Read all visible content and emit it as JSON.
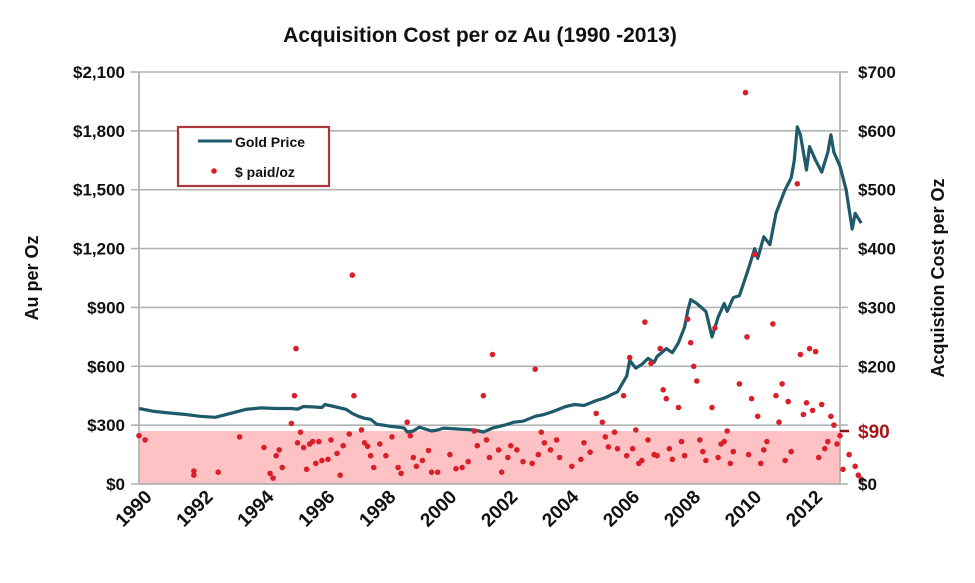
{
  "chart_data": {
    "type": "line",
    "title": "Acquisition Cost per oz Au (1990 -2013)",
    "xlabel": "",
    "ylabel_left": "Au per Oz",
    "ylabel_right": "Acquistion Cost per Oz",
    "xlim": [
      1990,
      2013
    ],
    "ylim_left": [
      0,
      2100
    ],
    "ylim_right": [
      0,
      700
    ],
    "grid": true,
    "x_ticks": [
      "1990",
      "1992",
      "1994",
      "1996",
      "1998",
      "2000",
      "2002",
      "2004",
      "2006",
      "2008",
      "2010",
      "2012"
    ],
    "y_left_ticks": [
      "$0",
      "$300",
      "$600",
      "$900",
      "$1,200",
      "$1,500",
      "$1,800",
      "$2,100"
    ],
    "y_right_ticks": [
      "$0",
      "$100",
      "$200",
      "$300",
      "$400",
      "$500",
      "$600",
      "$700"
    ],
    "threshold": {
      "value": 90,
      "label": "$90",
      "axis": "right",
      "color": "#b01c20",
      "band_color": "#ffc2c4"
    },
    "legend": {
      "placement": "top-left",
      "entries": [
        "Gold Price",
        "$ paid/oz"
      ]
    },
    "series": [
      {
        "name": "Gold Price",
        "axis": "left",
        "kind": "line",
        "color": "#1e5a6a",
        "points": [
          [
            1990.0,
            385
          ],
          [
            1990.5,
            370
          ],
          [
            1991.0,
            362
          ],
          [
            1991.5,
            355
          ],
          [
            1992.0,
            345
          ],
          [
            1992.5,
            340
          ],
          [
            1993.0,
            360
          ],
          [
            1993.5,
            380
          ],
          [
            1994.0,
            388
          ],
          [
            1994.5,
            385
          ],
          [
            1995.0,
            385
          ],
          [
            1995.2,
            382
          ],
          [
            1995.4,
            395
          ],
          [
            1995.7,
            393
          ],
          [
            1996.0,
            390
          ],
          [
            1996.1,
            405
          ],
          [
            1996.4,
            395
          ],
          [
            1996.8,
            380
          ],
          [
            1997.0,
            360
          ],
          [
            1997.2,
            345
          ],
          [
            1997.4,
            335
          ],
          [
            1997.6,
            330
          ],
          [
            1997.8,
            305
          ],
          [
            1998.0,
            300
          ],
          [
            1998.2,
            295
          ],
          [
            1998.5,
            290
          ],
          [
            1998.7,
            285
          ],
          [
            1998.8,
            265
          ],
          [
            1999.0,
            270
          ],
          [
            1999.2,
            290
          ],
          [
            1999.4,
            280
          ],
          [
            1999.6,
            270
          ],
          [
            1999.8,
            275
          ],
          [
            2000.0,
            285
          ],
          [
            2000.5,
            280
          ],
          [
            2001.0,
            275
          ],
          [
            2001.3,
            265
          ],
          [
            2001.6,
            285
          ],
          [
            2002.0,
            300
          ],
          [
            2002.3,
            315
          ],
          [
            2002.6,
            320
          ],
          [
            2003.0,
            345
          ],
          [
            2003.3,
            355
          ],
          [
            2003.6,
            370
          ],
          [
            2004.0,
            395
          ],
          [
            2004.3,
            405
          ],
          [
            2004.6,
            400
          ],
          [
            2005.0,
            425
          ],
          [
            2005.3,
            440
          ],
          [
            2005.5,
            455
          ],
          [
            2005.7,
            470
          ],
          [
            2006.0,
            550
          ],
          [
            2006.1,
            630
          ],
          [
            2006.3,
            590
          ],
          [
            2006.5,
            610
          ],
          [
            2006.7,
            640
          ],
          [
            2006.9,
            620
          ],
          [
            2007.0,
            650
          ],
          [
            2007.3,
            690
          ],
          [
            2007.5,
            670
          ],
          [
            2007.7,
            720
          ],
          [
            2007.9,
            800
          ],
          [
            2008.0,
            880
          ],
          [
            2008.1,
            940
          ],
          [
            2008.3,
            920
          ],
          [
            2008.6,
            880
          ],
          [
            2008.8,
            750
          ],
          [
            2009.0,
            850
          ],
          [
            2009.2,
            920
          ],
          [
            2009.3,
            880
          ],
          [
            2009.5,
            950
          ],
          [
            2009.7,
            960
          ],
          [
            2010.0,
            1100
          ],
          [
            2010.2,
            1200
          ],
          [
            2010.3,
            1150
          ],
          [
            2010.5,
            1260
          ],
          [
            2010.7,
            1220
          ],
          [
            2010.9,
            1380
          ],
          [
            2011.0,
            1420
          ],
          [
            2011.2,
            1500
          ],
          [
            2011.4,
            1560
          ],
          [
            2011.5,
            1650
          ],
          [
            2011.6,
            1820
          ],
          [
            2011.7,
            1780
          ],
          [
            2011.9,
            1600
          ],
          [
            2012.0,
            1720
          ],
          [
            2012.2,
            1650
          ],
          [
            2012.4,
            1590
          ],
          [
            2012.6,
            1690
          ],
          [
            2012.7,
            1780
          ],
          [
            2012.8,
            1690
          ],
          [
            2013.0,
            1620
          ],
          [
            2013.2,
            1500
          ],
          [
            2013.4,
            1300
          ],
          [
            2013.5,
            1380
          ],
          [
            2013.7,
            1330
          ]
        ]
      },
      {
        "name": "$ paid/oz",
        "axis": "right",
        "kind": "scatter",
        "color": "#d9202a",
        "points": [
          [
            1990.0,
            82
          ],
          [
            1990.2,
            75
          ],
          [
            1991.8,
            22
          ],
          [
            1991.8,
            15
          ],
          [
            1992.6,
            20
          ],
          [
            1993.3,
            80
          ],
          [
            1994.1,
            62
          ],
          [
            1994.3,
            18
          ],
          [
            1994.4,
            10
          ],
          [
            1994.5,
            48
          ],
          [
            1994.6,
            58
          ],
          [
            1994.7,
            28
          ],
          [
            1995.0,
            103
          ],
          [
            1995.1,
            150
          ],
          [
            1995.15,
            230
          ],
          [
            1995.2,
            70
          ],
          [
            1995.3,
            88
          ],
          [
            1995.4,
            62
          ],
          [
            1995.5,
            25
          ],
          [
            1995.6,
            68
          ],
          [
            1995.7,
            72
          ],
          [
            1995.8,
            35
          ],
          [
            1995.9,
            72
          ],
          [
            1996.0,
            40
          ],
          [
            1996.2,
            42
          ],
          [
            1996.3,
            75
          ],
          [
            1996.5,
            52
          ],
          [
            1996.6,
            15
          ],
          [
            1996.7,
            65
          ],
          [
            1996.9,
            85
          ],
          [
            1997.0,
            355
          ],
          [
            1997.05,
            150
          ],
          [
            1997.3,
            92
          ],
          [
            1997.4,
            70
          ],
          [
            1997.5,
            64
          ],
          [
            1997.6,
            48
          ],
          [
            1997.7,
            28
          ],
          [
            1997.9,
            68
          ],
          [
            1998.1,
            48
          ],
          [
            1998.3,
            80
          ],
          [
            1998.5,
            28
          ],
          [
            1998.6,
            18
          ],
          [
            1998.8,
            105
          ],
          [
            1998.9,
            82
          ],
          [
            1999.0,
            45
          ],
          [
            1999.1,
            30
          ],
          [
            1999.3,
            40
          ],
          [
            1999.5,
            57
          ],
          [
            1999.6,
            20
          ],
          [
            1999.8,
            20
          ],
          [
            2000.2,
            50
          ],
          [
            2000.4,
            26
          ],
          [
            2000.6,
            28
          ],
          [
            2000.8,
            38
          ],
          [
            2001.0,
            90
          ],
          [
            2001.1,
            65
          ],
          [
            2001.3,
            150
          ],
          [
            2001.4,
            75
          ],
          [
            2001.5,
            45
          ],
          [
            2001.6,
            220
          ],
          [
            2001.8,
            58
          ],
          [
            2001.9,
            20
          ],
          [
            2002.1,
            45
          ],
          [
            2002.2,
            65
          ],
          [
            2002.4,
            58
          ],
          [
            2002.6,
            38
          ],
          [
            2002.9,
            35
          ],
          [
            2003.0,
            195
          ],
          [
            2003.1,
            50
          ],
          [
            2003.2,
            88
          ],
          [
            2003.3,
            70
          ],
          [
            2003.5,
            58
          ],
          [
            2003.7,
            75
          ],
          [
            2003.8,
            45
          ],
          [
            2004.2,
            30
          ],
          [
            2004.5,
            42
          ],
          [
            2004.6,
            70
          ],
          [
            2004.8,
            54
          ],
          [
            2005.0,
            120
          ],
          [
            2005.2,
            105
          ],
          [
            2005.3,
            80
          ],
          [
            2005.4,
            63
          ],
          [
            2005.6,
            88
          ],
          [
            2005.7,
            60
          ],
          [
            2005.9,
            150
          ],
          [
            2006.0,
            48
          ],
          [
            2006.1,
            215
          ],
          [
            2006.2,
            60
          ],
          [
            2006.3,
            92
          ],
          [
            2006.4,
            35
          ],
          [
            2006.5,
            40
          ],
          [
            2006.6,
            275
          ],
          [
            2006.7,
            75
          ],
          [
            2006.8,
            205
          ],
          [
            2006.9,
            50
          ],
          [
            2007.0,
            48
          ],
          [
            2007.1,
            230
          ],
          [
            2007.2,
            160
          ],
          [
            2007.3,
            145
          ],
          [
            2007.4,
            60
          ],
          [
            2007.5,
            42
          ],
          [
            2007.7,
            130
          ],
          [
            2007.8,
            72
          ],
          [
            2007.9,
            48
          ],
          [
            2008.0,
            280
          ],
          [
            2008.1,
            240
          ],
          [
            2008.2,
            200
          ],
          [
            2008.3,
            175
          ],
          [
            2008.4,
            75
          ],
          [
            2008.5,
            55
          ],
          [
            2008.6,
            40
          ],
          [
            2008.8,
            130
          ],
          [
            2008.9,
            265
          ],
          [
            2009.0,
            45
          ],
          [
            2009.1,
            68
          ],
          [
            2009.2,
            72
          ],
          [
            2009.3,
            90
          ],
          [
            2009.4,
            35
          ],
          [
            2009.5,
            55
          ],
          [
            2009.7,
            170
          ],
          [
            2009.9,
            665
          ],
          [
            2009.95,
            250
          ],
          [
            2010.0,
            50
          ],
          [
            2010.1,
            145
          ],
          [
            2010.2,
            390
          ],
          [
            2010.3,
            115
          ],
          [
            2010.4,
            35
          ],
          [
            2010.5,
            58
          ],
          [
            2010.6,
            72
          ],
          [
            2010.8,
            272
          ],
          [
            2010.9,
            150
          ],
          [
            2011.0,
            105
          ],
          [
            2011.1,
            170
          ],
          [
            2011.2,
            40
          ],
          [
            2011.3,
            140
          ],
          [
            2011.4,
            55
          ],
          [
            2011.6,
            510
          ],
          [
            2011.7,
            220
          ],
          [
            2011.8,
            118
          ],
          [
            2011.9,
            138
          ],
          [
            2012.0,
            230
          ],
          [
            2012.1,
            125
          ],
          [
            2012.2,
            225
          ],
          [
            2012.3,
            45
          ],
          [
            2012.4,
            135
          ],
          [
            2012.5,
            60
          ],
          [
            2012.6,
            72
          ],
          [
            2012.7,
            115
          ],
          [
            2012.8,
            100
          ],
          [
            2012.9,
            68
          ],
          [
            2013.0,
            82
          ],
          [
            2013.1,
            25
          ],
          [
            2013.3,
            50
          ],
          [
            2013.5,
            30
          ],
          [
            2013.6,
            15
          ],
          [
            2013.7,
            8
          ]
        ]
      }
    ]
  }
}
